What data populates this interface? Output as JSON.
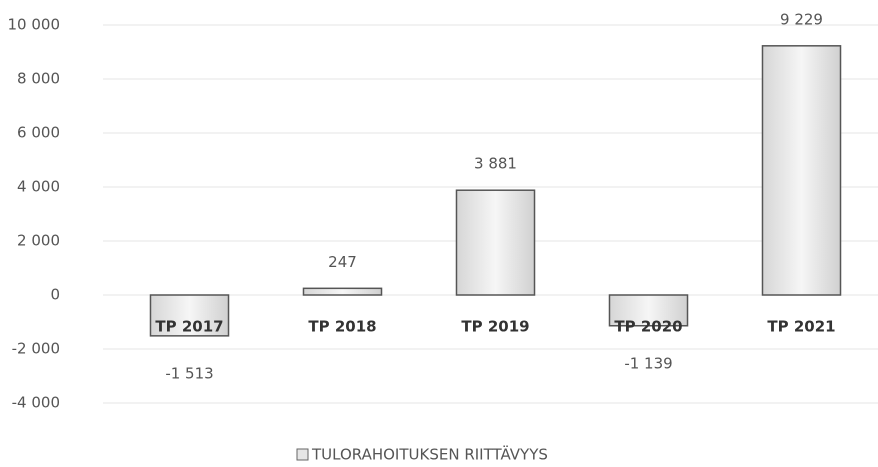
{
  "chart_data": {
    "type": "bar",
    "categories": [
      "TP 2017",
      "TP 2018",
      "TP 2019",
      "TP 2020",
      "TP 2021"
    ],
    "series": [
      {
        "name": "TULORAHOITUKSEN RIITTÄVYYS",
        "color": "#e6e6e6",
        "values": [
          -1513,
          247,
          3881,
          -1139,
          9229
        ],
        "value_labels": [
          "-1 513",
          "247",
          "3 881",
          "-1 139",
          "9 229"
        ]
      }
    ],
    "ylim": [
      -4000,
      10000
    ],
    "yticks": [
      {
        "value": -4000,
        "label": "-4 000"
      },
      {
        "value": -2000,
        "label": "-2 000"
      },
      0,
      {
        "value": 2000,
        "label": "2 000"
      },
      {
        "value": 4000,
        "label": "4 000"
      },
      {
        "value": 6000,
        "label": "6 000"
      },
      {
        "value": 8000,
        "label": "8 000"
      },
      {
        "value": 10000,
        "label": "10 000"
      }
    ],
    "grid": true,
    "legend": "bottom"
  }
}
